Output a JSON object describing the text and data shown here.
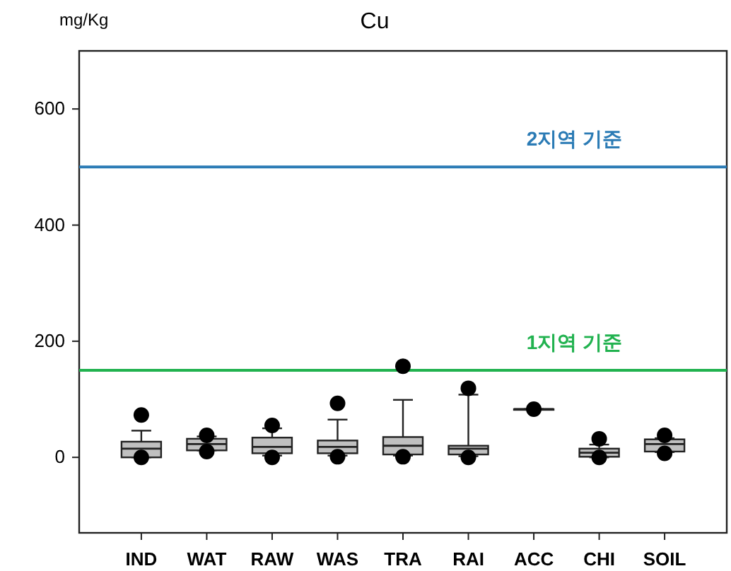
{
  "chart_data": {
    "type": "box",
    "title": "Cu",
    "ylabel": "mg/Kg",
    "categories": [
      "IND",
      "WAT",
      "RAW",
      "WAS",
      "TRA",
      "RAI",
      "ACC",
      "CHI",
      "SOIL"
    ],
    "boxes": [
      {
        "low": 0,
        "q1": 0,
        "median": 15,
        "q3": 27,
        "high": 46,
        "outliers": [
          73,
          0
        ]
      },
      {
        "low": 12,
        "q1": 12,
        "median": 23,
        "q3": 32,
        "high": 36,
        "outliers": [
          38,
          10
        ]
      },
      {
        "low": 3,
        "q1": 7,
        "median": 18,
        "q3": 34,
        "high": 50,
        "outliers": [
          55,
          0
        ]
      },
      {
        "low": 3,
        "q1": 7,
        "median": 18,
        "q3": 29,
        "high": 65,
        "outliers": [
          93,
          1
        ]
      },
      {
        "low": 3,
        "q1": 5,
        "median": 20,
        "q3": 35,
        "high": 99,
        "outliers": [
          157,
          1
        ]
      },
      {
        "low": 2,
        "q1": 5,
        "median": 15,
        "q3": 20,
        "high": 108,
        "outliers": [
          119,
          0
        ]
      },
      {
        "low": 83,
        "q1": 83,
        "median": 83,
        "q3": 83,
        "high": 83,
        "outliers": [
          83
        ]
      },
      {
        "low": 0,
        "q1": 1,
        "median": 8,
        "q3": 15,
        "high": 22,
        "outliers": [
          32,
          0
        ]
      },
      {
        "low": 9,
        "q1": 10,
        "median": 23,
        "q3": 31,
        "high": 33,
        "outliers": [
          38,
          7
        ]
      }
    ],
    "ylim": [
      -130,
      700
    ],
    "yticks": [
      0,
      200,
      400,
      600
    ],
    "ref_lines": [
      {
        "axis": "y",
        "value": 500,
        "label": "2지역 기준",
        "color": "#2b7bb5"
      },
      {
        "axis": "y",
        "value": 150,
        "label": "1지역 기준",
        "color": "#21b24f"
      }
    ],
    "grid": false
  }
}
